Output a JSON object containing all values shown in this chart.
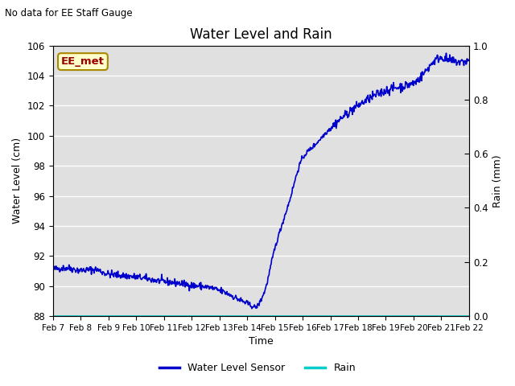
{
  "title": "Water Level and Rain",
  "subtitle": "No data for EE Staff Gauge",
  "xlabel": "Time",
  "ylabel_left": "Water Level (cm)",
  "ylabel_right": "Rain (mm)",
  "ylim_left": [
    88,
    106
  ],
  "ylim_right": [
    0.0,
    1.0
  ],
  "yticks_left": [
    88,
    90,
    92,
    94,
    96,
    98,
    100,
    102,
    104,
    106
  ],
  "yticks_right": [
    0.0,
    0.2,
    0.4,
    0.6,
    0.8,
    1.0
  ],
  "xtick_labels": [
    "Feb 7",
    "Feb 8",
    "Feb 9",
    "Feb 10",
    "Feb 11",
    "Feb 12",
    "Feb 13",
    "Feb 14",
    "Feb 15",
    "Feb 16",
    "Feb 17",
    "Feb 18",
    "Feb 19",
    "Feb 20",
    "Feb 21",
    "Feb 22"
  ],
  "water_level_color": "#0000cc",
  "rain_color": "#00cccc",
  "background_color": "#e0e0e0",
  "legend_label_water": "Water Level Sensor",
  "legend_label_rain": "Rain",
  "annotation_text": "EE_met",
  "annotation_color": "#990000",
  "annotation_bg": "#ffffcc",
  "annotation_border": "#aa8800",
  "fig_width": 6.4,
  "fig_height": 4.8,
  "dpi": 100
}
